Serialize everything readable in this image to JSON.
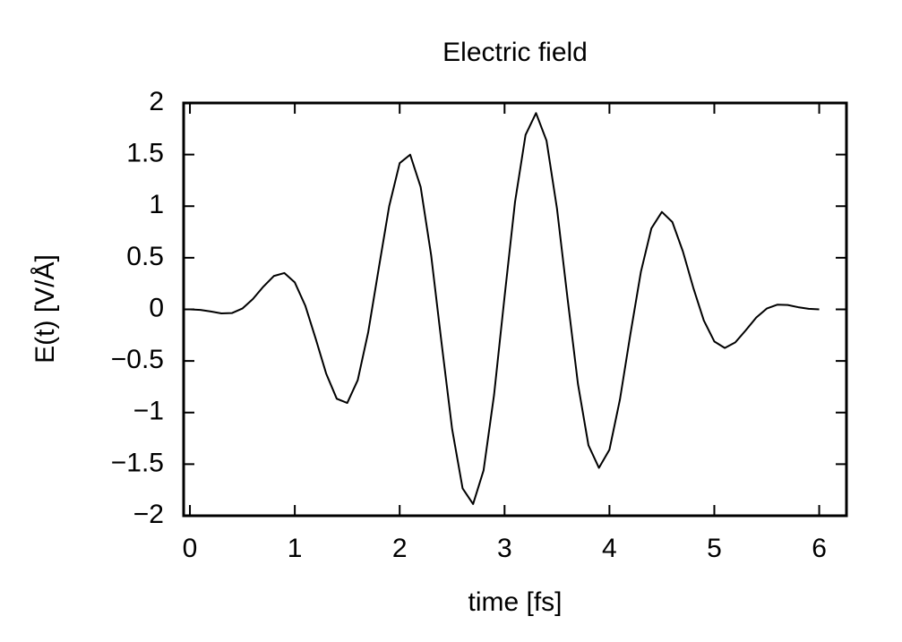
{
  "chart_data": {
    "type": "line",
    "title": "Electric field",
    "x_label": "time [fs]",
    "y_label": "E(t) [V/Å]",
    "x": [
      0,
      0.1,
      0.2,
      0.3,
      0.4,
      0.5,
      0.6,
      0.7,
      0.8,
      0.9,
      1.0,
      1.1,
      1.2,
      1.3,
      1.4,
      1.5,
      1.6,
      1.7,
      1.8,
      1.9,
      2.0,
      2.1,
      2.2,
      2.3,
      2.4,
      2.5,
      2.6,
      2.7,
      2.8,
      2.9,
      3.0,
      3.1,
      3.2,
      3.3,
      3.4,
      3.5,
      3.6,
      3.7,
      3.8,
      3.9,
      4.0,
      4.1,
      4.2,
      4.3,
      4.4,
      4.5,
      4.6,
      4.7,
      4.8,
      4.9,
      5.0,
      5.1,
      5.2,
      5.3,
      5.4,
      5.5,
      5.6,
      5.7,
      5.8,
      5.9,
      6.0
    ],
    "series": [
      {
        "color": "#000000",
        "values": [
          0,
          -0.005,
          -0.021,
          -0.039,
          -0.036,
          0.008,
          0.1,
          0.22,
          0.323,
          0.352,
          0.261,
          0.036,
          -0.287,
          -0.625,
          -0.866,
          -0.907,
          -0.686,
          -0.221,
          0.394,
          1.0,
          1.417,
          1.499,
          1.186,
          0.525,
          -0.331,
          -1.16,
          -1.735,
          -1.887,
          -1.56,
          -0.828,
          0.122,
          1.042,
          1.69,
          1.902,
          1.635,
          0.975,
          0.111,
          -0.724,
          -1.317,
          -1.536,
          -1.36,
          -0.874,
          -0.239,
          0.364,
          0.785,
          0.944,
          0.846,
          0.563,
          0.208,
          -0.108,
          -0.311,
          -0.374,
          -0.32,
          -0.203,
          -0.079,
          0.008,
          0.045,
          0.042,
          0.021,
          0.005,
          0
        ]
      }
    ],
    "xlim": [
      -0.06,
      6.26
    ],
    "xticks": [
      0,
      1,
      2,
      3,
      4,
      5,
      6
    ],
    "ylim": [
      -2,
      2
    ],
    "yticks": [
      {
        "value": -2,
        "label": "−2"
      },
      {
        "value": -1.5,
        "label": "−1.5"
      },
      {
        "value": -1,
        "label": "−1"
      },
      {
        "value": -0.5,
        "label": "−0.5"
      },
      0,
      0.5,
      1,
      1.5,
      2
    ],
    "grid": false
  }
}
